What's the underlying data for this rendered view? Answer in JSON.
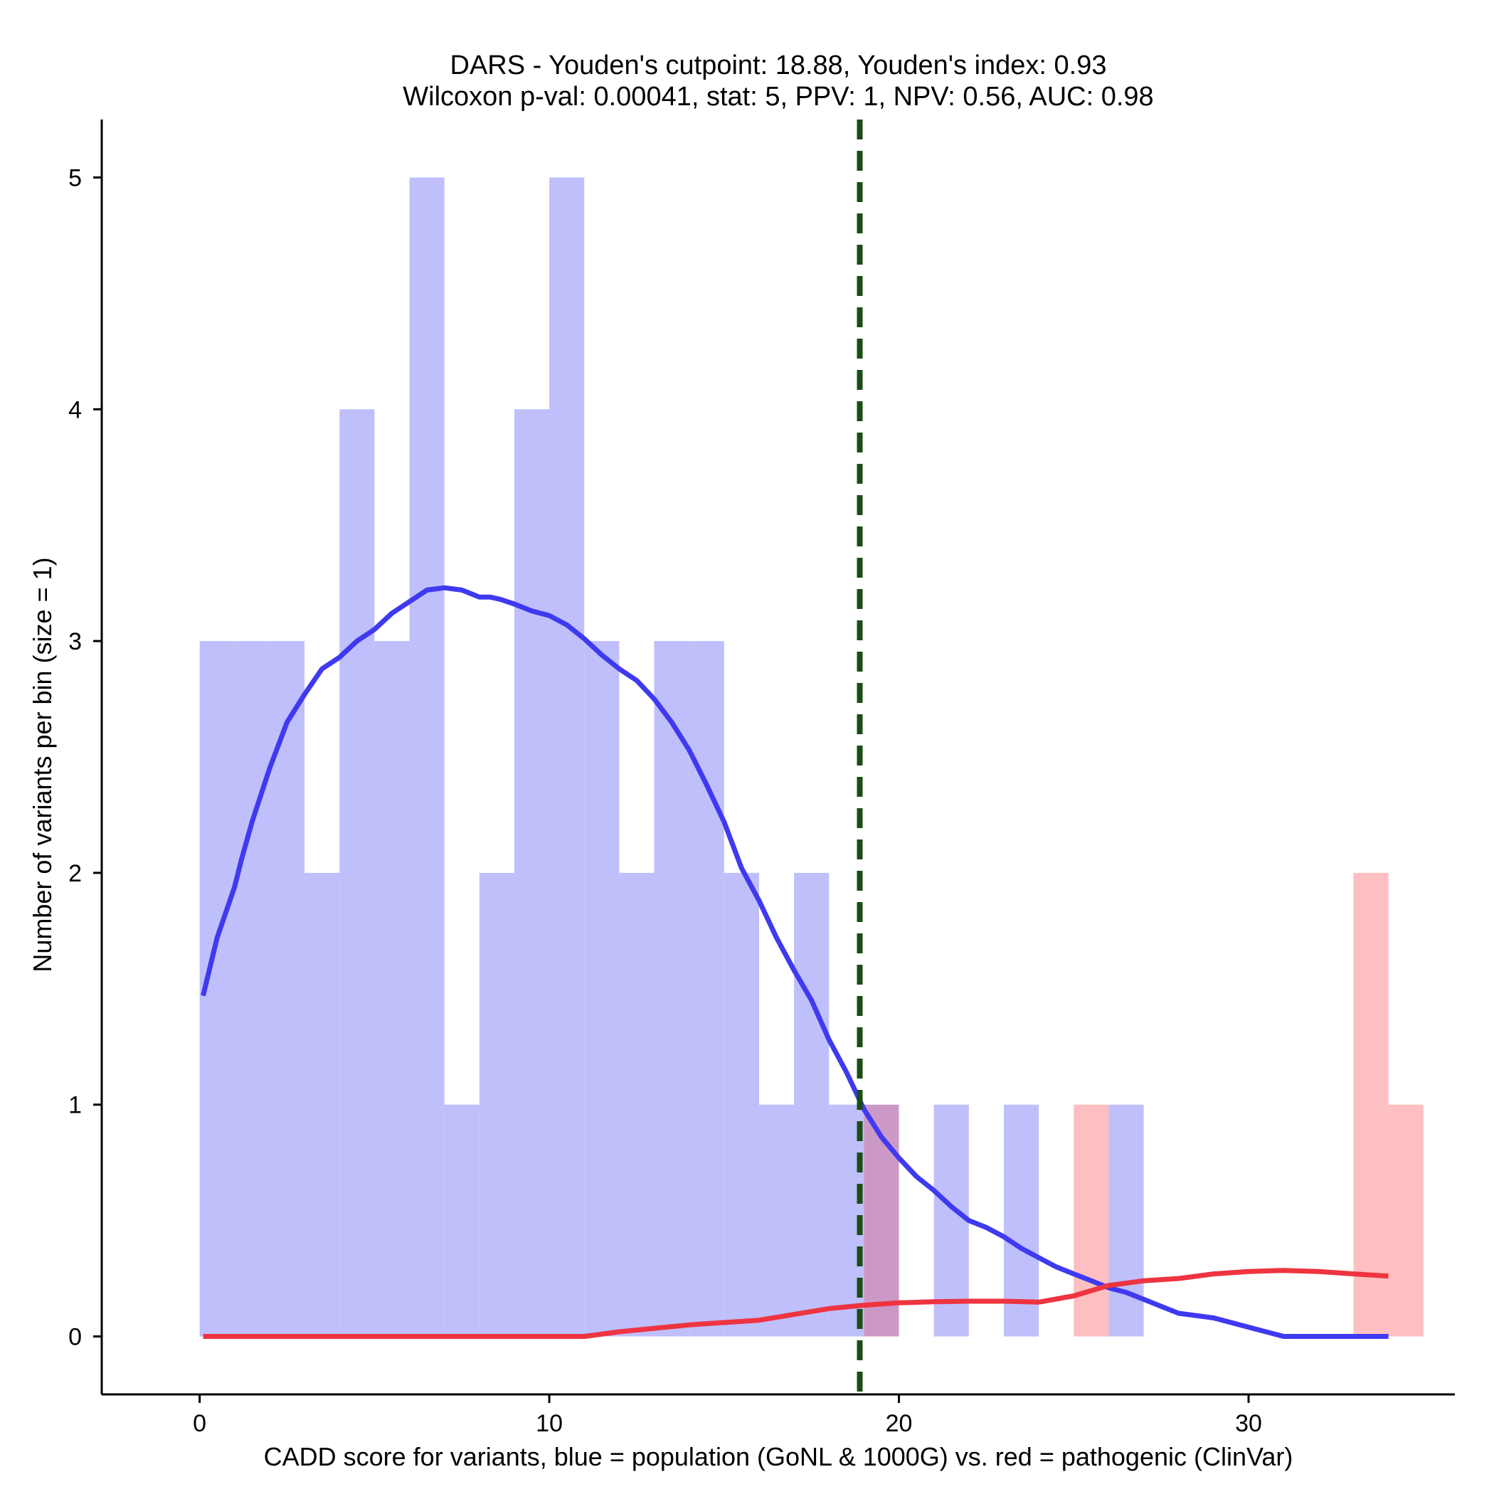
{
  "chart_data": {
    "type": "histogram",
    "title_line1": "DARS - Youden's cutpoint: 18.88, Youden's index: 0.93",
    "title_line2": "Wilcoxon p-val: 0.00041, stat: 5, PPV: 1, NPV: 0.56, AUC: 0.98",
    "xlabel": "CADD score for variants, blue = population (GoNL & 1000G) vs. red = pathogenic (ClinVar)",
    "ylabel": "Number of variants per bin (size = 1)",
    "xlim": [
      -2.8,
      35.9
    ],
    "ylim": [
      -0.25,
      5.25
    ],
    "x_ticks": [
      0,
      10,
      20,
      30
    ],
    "y_ticks": [
      0,
      1,
      2,
      3,
      4,
      5
    ],
    "bin_size": 1,
    "cutpoint": 18.88,
    "colors": {
      "population_bar": "#bfbffb",
      "pathogenic_bar": "#fdbfc1",
      "overlap_bar": "#cc99c6",
      "population_density": "#3f3af0",
      "pathogenic_density": "#ee3440",
      "cutpoint_line": "#1a4d13"
    },
    "series": [
      {
        "name": "population (GoNL & 1000G)",
        "bins": [
          {
            "x0": 0,
            "x1": 1,
            "count": 3
          },
          {
            "x0": 1,
            "x1": 2,
            "count": 3
          },
          {
            "x0": 2,
            "x1": 3,
            "count": 3
          },
          {
            "x0": 3,
            "x1": 4,
            "count": 2
          },
          {
            "x0": 4,
            "x1": 5,
            "count": 4
          },
          {
            "x0": 5,
            "x1": 6,
            "count": 3
          },
          {
            "x0": 6,
            "x1": 7,
            "count": 5
          },
          {
            "x0": 7,
            "x1": 8,
            "count": 1
          },
          {
            "x0": 8,
            "x1": 9,
            "count": 2
          },
          {
            "x0": 9,
            "x1": 10,
            "count": 4
          },
          {
            "x0": 10,
            "x1": 11,
            "count": 5
          },
          {
            "x0": 11,
            "x1": 12,
            "count": 3
          },
          {
            "x0": 12,
            "x1": 13,
            "count": 2
          },
          {
            "x0": 13,
            "x1": 14,
            "count": 3
          },
          {
            "x0": 14,
            "x1": 15,
            "count": 3
          },
          {
            "x0": 15,
            "x1": 16,
            "count": 2
          },
          {
            "x0": 16,
            "x1": 17,
            "count": 1
          },
          {
            "x0": 17,
            "x1": 18,
            "count": 2
          },
          {
            "x0": 18,
            "x1": 19,
            "count": 1
          },
          {
            "x0": 19,
            "x1": 20,
            "count": 1
          },
          {
            "x0": 21,
            "x1": 22,
            "count": 1
          },
          {
            "x0": 23,
            "x1": 24,
            "count": 1
          },
          {
            "x0": 26,
            "x1": 27,
            "count": 1
          }
        ]
      },
      {
        "name": "pathogenic (ClinVar)",
        "bins": [
          {
            "x0": 19,
            "x1": 20,
            "count": 1
          },
          {
            "x0": 25,
            "x1": 26,
            "count": 1
          },
          {
            "x0": 33,
            "x1": 34,
            "count": 2
          },
          {
            "x0": 34,
            "x1": 35,
            "count": 1
          }
        ]
      }
    ],
    "density_curves": [
      {
        "name": "population density",
        "x": [
          0.1,
          0.5,
          1.0,
          1.2,
          1.5,
          2.0,
          2.5,
          3.0,
          3.5,
          4.0,
          4.5,
          5.0,
          5.5,
          6.0,
          6.5,
          7.0,
          7.5,
          8.0,
          8.3,
          8.6,
          9.0,
          9.5,
          10.0,
          10.5,
          11.0,
          11.5,
          12.0,
          12.5,
          13.0,
          13.5,
          14.0,
          14.5,
          15.0,
          15.5,
          16.0,
          16.5,
          17.0,
          17.5,
          18.0,
          18.5,
          19.0,
          19.5,
          20.0,
          20.5,
          21.0,
          21.5,
          22.0,
          22.5,
          23.0,
          23.5,
          24.0,
          24.5,
          25.0,
          25.5,
          26.0,
          26.5,
          27.0,
          27.5,
          28.0,
          28.5,
          29.0,
          29.5,
          30.0,
          30.5,
          31.0,
          31.5,
          32.0,
          32.3,
          33.0,
          34.0
        ],
        "y": [
          1.47,
          1.72,
          1.94,
          2.06,
          2.22,
          2.45,
          2.65,
          2.77,
          2.88,
          2.93,
          3.0,
          3.05,
          3.12,
          3.17,
          3.22,
          3.23,
          3.22,
          3.19,
          3.19,
          3.18,
          3.16,
          3.13,
          3.11,
          3.07,
          3.01,
          2.94,
          2.88,
          2.83,
          2.75,
          2.65,
          2.53,
          2.38,
          2.22,
          2.02,
          1.88,
          1.72,
          1.58,
          1.45,
          1.28,
          1.14,
          0.98,
          0.86,
          0.77,
          0.69,
          0.63,
          0.56,
          0.5,
          0.47,
          0.43,
          0.38,
          0.34,
          0.3,
          0.27,
          0.24,
          0.21,
          0.19,
          0.16,
          0.13,
          0.1,
          0.09,
          0.08,
          0.06,
          0.04,
          0.02,
          0.0,
          0.0,
          0.0,
          0.0,
          0.0,
          0.0
        ]
      },
      {
        "name": "pathogenic density",
        "x": [
          0.1,
          2.0,
          4.0,
          6.0,
          8.0,
          10.0,
          11.0,
          12.0,
          13.0,
          14.0,
          15.0,
          16.0,
          17.0,
          18.0,
          19.0,
          20.0,
          21.0,
          22.0,
          23.0,
          24.0,
          25.0,
          26.0,
          27.0,
          28.0,
          29.0,
          30.0,
          31.0,
          32.0,
          33.0,
          34.0
        ],
        "y": [
          0.0,
          0.0,
          0.0,
          0.0,
          0.0,
          0.0,
          0.0,
          0.02,
          0.035,
          0.05,
          0.06,
          0.07,
          0.095,
          0.12,
          0.135,
          0.145,
          0.15,
          0.152,
          0.152,
          0.148,
          0.175,
          0.22,
          0.24,
          0.25,
          0.27,
          0.28,
          0.285,
          0.28,
          0.27,
          0.26
        ]
      }
    ]
  }
}
